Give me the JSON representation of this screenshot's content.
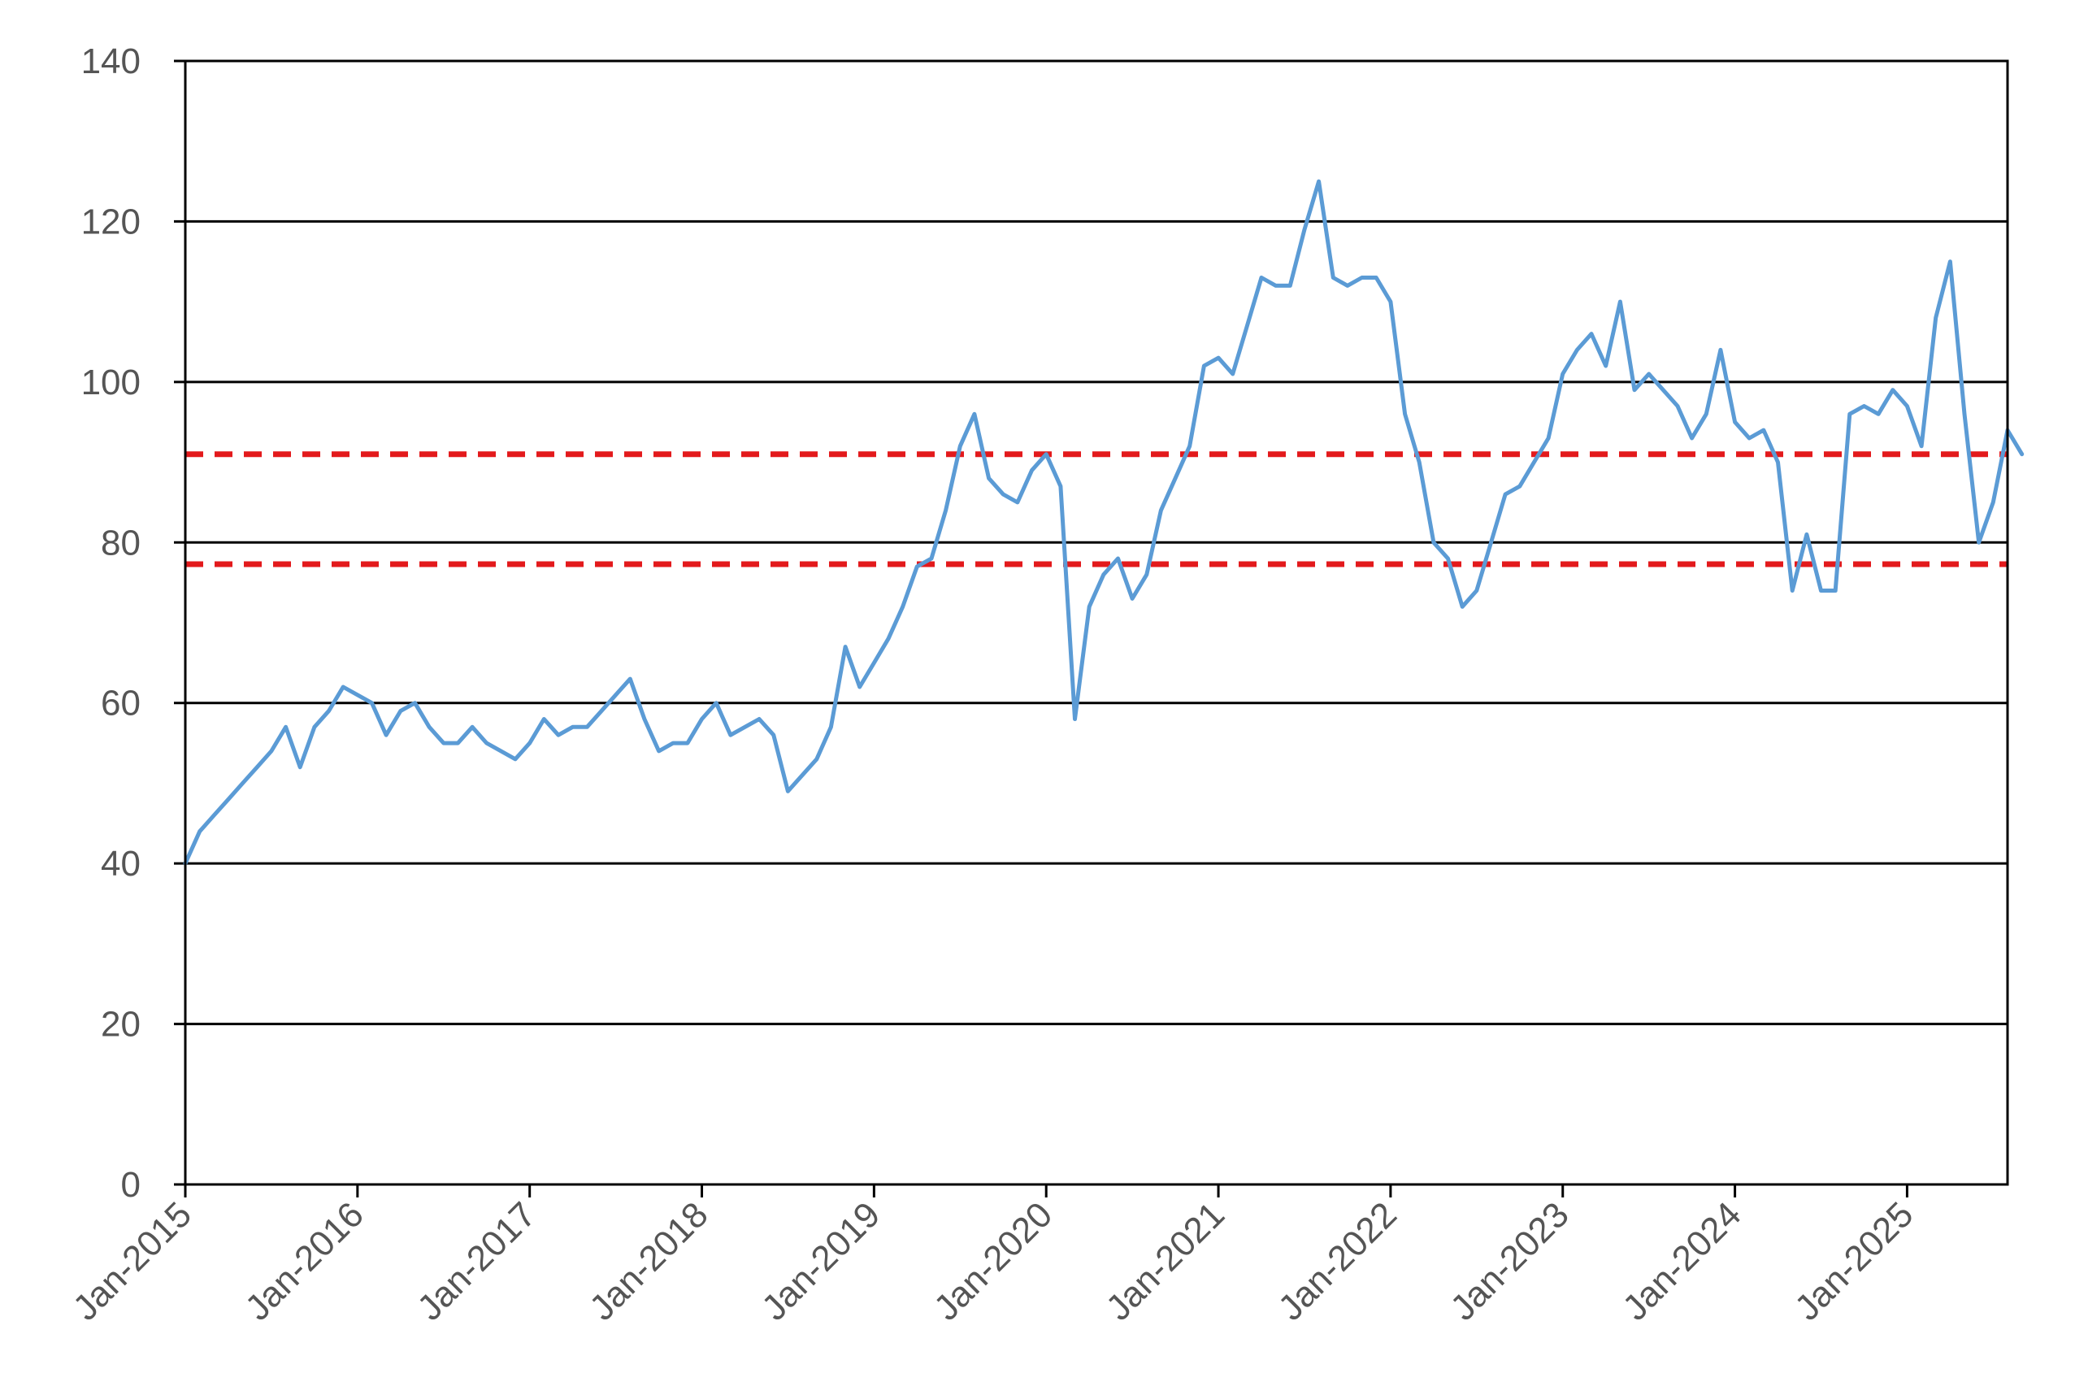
{
  "chart_data": {
    "type": "line",
    "title": "",
    "xlabel": "",
    "ylabel": "",
    "ylim": [
      0,
      140
    ],
    "yticks": [
      0,
      20,
      40,
      60,
      80,
      100,
      120,
      140
    ],
    "xlim": [
      "2015-01",
      "2025-08"
    ],
    "xticks": [
      "Jan-2015",
      "Jan-2016",
      "Jan-2017",
      "Jan-2018",
      "Jan-2019",
      "Jan-2020",
      "Jan-2021",
      "Jan-2022",
      "Jan-2023",
      "Jan-2024",
      "Jan-2025"
    ],
    "grid": "horizontal",
    "series": [
      {
        "color": "#5b9bd5",
        "points": [
          [
            "2015-01",
            40
          ],
          [
            "2015-02",
            44
          ],
          [
            "2015-03",
            46
          ],
          [
            "2015-04",
            48
          ],
          [
            "2015-05",
            50
          ],
          [
            "2015-06",
            52
          ],
          [
            "2015-07",
            54
          ],
          [
            "2015-08",
            57
          ],
          [
            "2015-09",
            52
          ],
          [
            "2015-10",
            57
          ],
          [
            "2015-11",
            59
          ],
          [
            "2015-12",
            62
          ],
          [
            "2016-01",
            61
          ],
          [
            "2016-02",
            60
          ],
          [
            "2016-03",
            56
          ],
          [
            "2016-04",
            59
          ],
          [
            "2016-05",
            60
          ],
          [
            "2016-06",
            57
          ],
          [
            "2016-07",
            55
          ],
          [
            "2016-08",
            55
          ],
          [
            "2016-09",
            57
          ],
          [
            "2016-10",
            55
          ],
          [
            "2016-11",
            54
          ],
          [
            "2016-12",
            53
          ],
          [
            "2017-01",
            55
          ],
          [
            "2017-02",
            58
          ],
          [
            "2017-03",
            56
          ],
          [
            "2017-04",
            57
          ],
          [
            "2017-05",
            57
          ],
          [
            "2017-06",
            59
          ],
          [
            "2017-07",
            61
          ],
          [
            "2017-08",
            63
          ],
          [
            "2017-09",
            58
          ],
          [
            "2017-10",
            54
          ],
          [
            "2017-11",
            55
          ],
          [
            "2017-12",
            55
          ],
          [
            "2018-01",
            58
          ],
          [
            "2018-02",
            60
          ],
          [
            "2018-03",
            56
          ],
          [
            "2018-04",
            57
          ],
          [
            "2018-05",
            58
          ],
          [
            "2018-06",
            56
          ],
          [
            "2018-07",
            49
          ],
          [
            "2018-08",
            51
          ],
          [
            "2018-09",
            53
          ],
          [
            "2018-10",
            57
          ],
          [
            "2018-11",
            67
          ],
          [
            "2018-12",
            62
          ],
          [
            "2019-01",
            65
          ],
          [
            "2019-02",
            68
          ],
          [
            "2019-03",
            72
          ],
          [
            "2019-04",
            77
          ],
          [
            "2019-05",
            78
          ],
          [
            "2019-06",
            84
          ],
          [
            "2019-07",
            92
          ],
          [
            "2019-08",
            96
          ],
          [
            "2019-09",
            88
          ],
          [
            "2019-10",
            86
          ],
          [
            "2019-11",
            85
          ],
          [
            "2019-12",
            89
          ],
          [
            "2020-01",
            91
          ],
          [
            "2020-02",
            87
          ],
          [
            "2020-03",
            58
          ],
          [
            "2020-04",
            72
          ],
          [
            "2020-05",
            76
          ],
          [
            "2020-06",
            78
          ],
          [
            "2020-07",
            73
          ],
          [
            "2020-08",
            76
          ],
          [
            "2020-09",
            84
          ],
          [
            "2020-10",
            88
          ],
          [
            "2020-11",
            92
          ],
          [
            "2020-12",
            102
          ],
          [
            "2021-01",
            103
          ],
          [
            "2021-02",
            101
          ],
          [
            "2021-03",
            107
          ],
          [
            "2021-04",
            113
          ],
          [
            "2021-05",
            112
          ],
          [
            "2021-06",
            112
          ],
          [
            "2021-07",
            119
          ],
          [
            "2021-08",
            125
          ],
          [
            "2021-09",
            113
          ],
          [
            "2021-10",
            112
          ],
          [
            "2021-11",
            113
          ],
          [
            "2021-12",
            113
          ],
          [
            "2022-01",
            110
          ],
          [
            "2022-02",
            96
          ],
          [
            "2022-03",
            90
          ],
          [
            "2022-04",
            80
          ],
          [
            "2022-05",
            78
          ],
          [
            "2022-06",
            72
          ],
          [
            "2022-07",
            74
          ],
          [
            "2022-08",
            80
          ],
          [
            "2022-09",
            86
          ],
          [
            "2022-10",
            87
          ],
          [
            "2022-11",
            90
          ],
          [
            "2022-12",
            93
          ],
          [
            "2023-01",
            101
          ],
          [
            "2023-02",
            104
          ],
          [
            "2023-03",
            106
          ],
          [
            "2023-04",
            102
          ],
          [
            "2023-05",
            110
          ],
          [
            "2023-06",
            99
          ],
          [
            "2023-07",
            101
          ],
          [
            "2023-08",
            99
          ],
          [
            "2023-09",
            97
          ],
          [
            "2023-10",
            93
          ],
          [
            "2023-11",
            96
          ],
          [
            "2023-12",
            104
          ],
          [
            "2024-01",
            95
          ],
          [
            "2024-02",
            93
          ],
          [
            "2024-03",
            94
          ],
          [
            "2024-04",
            90
          ],
          [
            "2024-05",
            74
          ],
          [
            "2024-06",
            81
          ],
          [
            "2024-07",
            74
          ],
          [
            "2024-08",
            74
          ],
          [
            "2024-09",
            96
          ],
          [
            "2024-10",
            97
          ],
          [
            "2024-11",
            96
          ],
          [
            "2024-12",
            99
          ],
          [
            "2025-01",
            97
          ],
          [
            "2025-02",
            92
          ],
          [
            "2025-03",
            108
          ],
          [
            "2025-04",
            115
          ],
          [
            "2025-05",
            96
          ],
          [
            "2025-06",
            80
          ],
          [
            "2025-07",
            85
          ],
          [
            "2025-08",
            94
          ],
          [
            "2025-09",
            91
          ]
        ]
      }
    ],
    "reference_lines": [
      {
        "y": 91,
        "color": "#e31a1c",
        "style": "dashed"
      },
      {
        "y": 77.3,
        "color": "#e31a1c",
        "style": "dashed"
      }
    ]
  }
}
